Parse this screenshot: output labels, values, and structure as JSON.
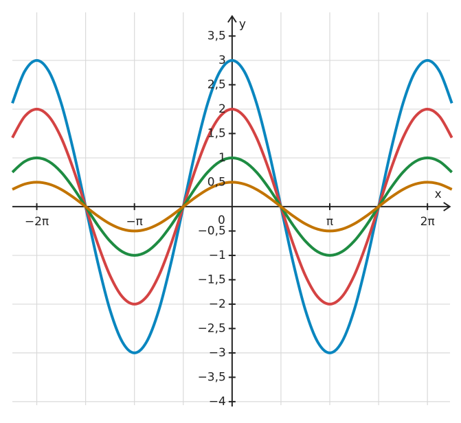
{
  "chart_data": {
    "type": "line",
    "x": [
      -7.0686,
      -6.6759,
      -6.2832,
      -5.8905,
      -5.4978,
      -5.1051,
      -4.7124,
      -4.3197,
      -3.927,
      -3.5343,
      -3.1416,
      -2.7489,
      -2.3562,
      -1.9635,
      -1.5708,
      -1.1781,
      -0.7854,
      -0.3927,
      0,
      0.3927,
      0.7854,
      1.1781,
      1.5708,
      1.9635,
      2.3562,
      2.7489,
      3.1416,
      3.5343,
      3.927,
      4.3197,
      4.7124,
      5.1051,
      5.4978,
      5.8905,
      6.2832,
      6.6759,
      7.0686
    ],
    "series": [
      {
        "color": "#0a86bf",
        "values": [
          2.1213,
          2.7716,
          3,
          2.7716,
          2.1213,
          1.1481,
          0,
          -1.1481,
          -2.1213,
          -2.7716,
          -3,
          -2.7716,
          -2.1213,
          -1.1481,
          0,
          1.1481,
          2.1213,
          2.7716,
          3,
          2.7716,
          2.1213,
          1.1481,
          0,
          -1.1481,
          -2.1213,
          -2.7716,
          -3,
          -2.7716,
          -2.1213,
          -1.1481,
          0,
          1.1481,
          2.1213,
          2.7716,
          3,
          2.7716,
          2.1213
        ]
      },
      {
        "color": "#d44343",
        "values": [
          1.4142,
          1.8478,
          2,
          1.8478,
          1.4142,
          0.7654,
          0,
          -0.7654,
          -1.4142,
          -1.8478,
          -2,
          -1.8478,
          -1.4142,
          -0.7654,
          0,
          0.7654,
          1.4142,
          1.8478,
          2,
          1.8478,
          1.4142,
          0.7654,
          0,
          -0.7654,
          -1.4142,
          -1.8478,
          -2,
          -1.8478,
          -1.4142,
          -0.7654,
          0,
          0.7654,
          1.4142,
          1.8478,
          2,
          1.8478,
          1.4142
        ]
      },
      {
        "color": "#1e8c42",
        "values": [
          0.7071,
          0.9239,
          1,
          0.9239,
          0.7071,
          0.3827,
          0,
          -0.3827,
          -0.7071,
          -0.9239,
          -1,
          -0.9239,
          -0.7071,
          -0.3827,
          0,
          0.3827,
          0.7071,
          0.9239,
          1,
          0.9239,
          0.7071,
          0.3827,
          0,
          -0.3827,
          -0.7071,
          -0.9239,
          -1,
          -0.9239,
          -0.7071,
          -0.3827,
          0,
          0.3827,
          0.7071,
          0.9239,
          1,
          0.9239,
          0.7071
        ]
      },
      {
        "color": "#c27400",
        "values": [
          0.3536,
          0.4619,
          0.5,
          0.4619,
          0.3536,
          0.1913,
          0,
          -0.1913,
          -0.3536,
          -0.4619,
          -0.5,
          -0.4619,
          -0.3536,
          -0.1913,
          0,
          0.1913,
          0.3536,
          0.4619,
          0.5,
          0.4619,
          0.3536,
          0.1913,
          0,
          -0.1913,
          -0.3536,
          -0.4619,
          -0.5,
          -0.4619,
          -0.3536,
          -0.1913,
          0,
          0.1913,
          0.3536,
          0.4619,
          0.5,
          0.4619,
          0.3536
        ]
      }
    ],
    "x_label": "x",
    "y_label": "y",
    "xlim": [
      -7.0686,
      7.0686
    ],
    "ylim": [
      -4.1,
      3.95
    ],
    "xticks": [
      {
        "value": -6.2832,
        "label": "−2π"
      },
      {
        "value": -3.1416,
        "label": "−π"
      },
      {
        "value": 0,
        "label": "0"
      },
      {
        "value": 3.1416,
        "label": "π"
      },
      {
        "value": 6.2832,
        "label": "2π"
      }
    ],
    "yticks": [
      {
        "value": 3.5,
        "label": "3,5"
      },
      3,
      {
        "value": 2.5,
        "label": "2,5"
      },
      2,
      {
        "value": 1.5,
        "label": "1,5"
      },
      1,
      {
        "value": 0.5,
        "label": "0,5"
      },
      {
        "value": -0.5,
        "label": "−0,5"
      },
      {
        "value": -1,
        "label": "−1"
      },
      {
        "value": -1.5,
        "label": "−1,5"
      },
      {
        "value": -2,
        "label": "−2"
      },
      {
        "value": -2.5,
        "label": "−2,5"
      },
      {
        "value": -3,
        "label": "−3"
      },
      {
        "value": -3.5,
        "label": "−3,5"
      },
      {
        "value": -4,
        "label": "−4"
      }
    ],
    "xgrid": [
      -6.2832,
      -4.7124,
      -3.1416,
      -1.5708,
      1.5708,
      3.1416,
      4.7124,
      6.2832
    ],
    "ygrid": [
      3,
      2,
      1,
      -1,
      -2,
      -3,
      -4
    ],
    "grid": true
  }
}
